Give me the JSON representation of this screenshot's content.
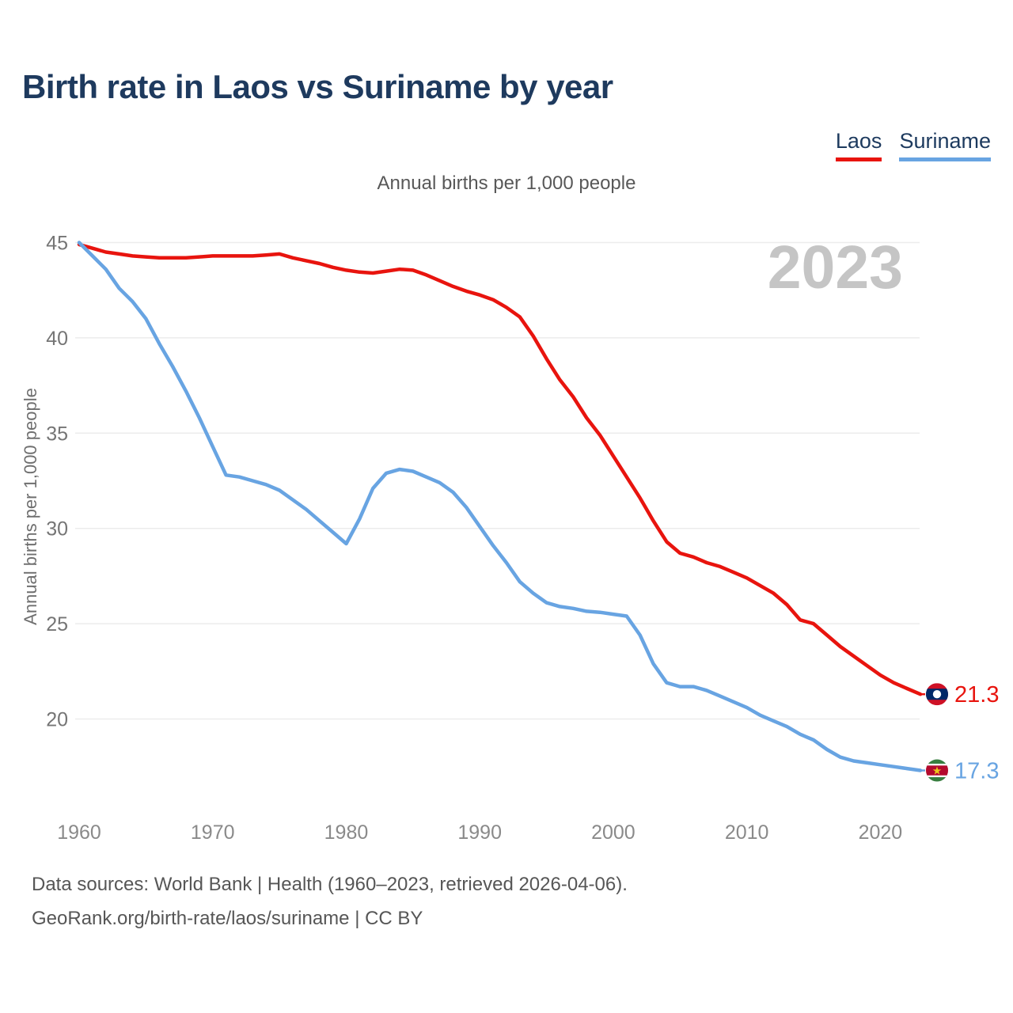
{
  "title": "Birth rate in Laos vs Suriname by year",
  "subtitle": "Annual births per 1,000 people",
  "legend": [
    {
      "label": "Laos",
      "color": "#e8140e"
    },
    {
      "label": "Suriname",
      "color": "#68a4e2"
    }
  ],
  "watermark": "2023",
  "footer": {
    "line1": "Data sources: World Bank | Health (1960–2023, retrieved 2026-04-06).",
    "line2": "GeoRank.org/birth-rate/laos/suriname | CC BY"
  },
  "end_labels": [
    {
      "series": "Laos",
      "value": "21.3",
      "flag": "laos-flag",
      "color": "#e8140e"
    },
    {
      "series": "Suriname",
      "value": "17.3",
      "flag": "suriname-flag",
      "color": "#68a4e2"
    }
  ],
  "chart_data": {
    "type": "line",
    "title": "Birth rate in Laos vs Suriname by year",
    "subtitle": "Annual births per 1,000 people",
    "xlabel": "",
    "ylabel": "Annual births per 1,000 people",
    "xlim": [
      1960,
      2023
    ],
    "ylim": [
      16.5,
      45.5
    ],
    "x_ticks": [
      1960,
      1970,
      1980,
      1990,
      2000,
      2010,
      2020
    ],
    "y_ticks": [
      45,
      40,
      35,
      30,
      25,
      20
    ],
    "grid": "horizontal-only",
    "legend_position": "top-right",
    "x": [
      1960,
      1961,
      1962,
      1963,
      1964,
      1965,
      1966,
      1967,
      1968,
      1969,
      1970,
      1971,
      1972,
      1973,
      1974,
      1975,
      1976,
      1977,
      1978,
      1979,
      1980,
      1981,
      1982,
      1983,
      1984,
      1985,
      1986,
      1987,
      1988,
      1989,
      1990,
      1991,
      1992,
      1993,
      1994,
      1995,
      1996,
      1997,
      1998,
      1999,
      2000,
      2001,
      2002,
      2003,
      2004,
      2005,
      2006,
      2007,
      2008,
      2009,
      2010,
      2011,
      2012,
      2013,
      2014,
      2015,
      2016,
      2017,
      2018,
      2019,
      2020,
      2021,
      2022,
      2023
    ],
    "series": [
      {
        "name": "Laos",
        "color": "#e8140e",
        "values": [
          44.9,
          44.7,
          44.5,
          44.4,
          44.3,
          44.25,
          44.2,
          44.2,
          44.2,
          44.25,
          44.3,
          44.3,
          44.3,
          44.3,
          44.35,
          44.4,
          44.2,
          44.05,
          43.9,
          43.7,
          43.55,
          43.45,
          43.4,
          43.5,
          43.6,
          43.55,
          43.3,
          43.0,
          42.7,
          42.45,
          42.25,
          42.0,
          41.6,
          41.1,
          40.1,
          38.9,
          37.8,
          36.9,
          35.8,
          34.9,
          33.8,
          32.7,
          31.6,
          30.4,
          29.3,
          28.7,
          28.5,
          28.2,
          28.0,
          27.7,
          27.4,
          27.0,
          26.6,
          26.0,
          25.2,
          25.0,
          24.4,
          23.8,
          23.3,
          22.8,
          22.3,
          21.9,
          21.6,
          21.3
        ]
      },
      {
        "name": "Suriname",
        "color": "#68a4e2",
        "values": [
          45.0,
          44.3,
          43.6,
          42.6,
          41.9,
          41.0,
          39.7,
          38.5,
          37.2,
          35.8,
          34.3,
          32.8,
          32.7,
          32.5,
          32.3,
          32.0,
          31.5,
          31.0,
          30.4,
          29.8,
          29.2,
          30.5,
          32.1,
          32.9,
          33.1,
          33.0,
          32.7,
          32.4,
          31.9,
          31.1,
          30.1,
          29.1,
          28.2,
          27.2,
          26.6,
          26.1,
          25.9,
          25.8,
          25.65,
          25.6,
          25.5,
          25.4,
          24.4,
          22.9,
          21.9,
          21.7,
          21.7,
          21.5,
          21.2,
          20.9,
          20.6,
          20.2,
          19.9,
          19.6,
          19.2,
          18.9,
          18.4,
          18.0,
          17.8,
          17.7,
          17.6,
          17.5,
          17.4,
          17.3
        ]
      }
    ],
    "end_values": {
      "Laos": 21.3,
      "Suriname": 17.3
    }
  }
}
